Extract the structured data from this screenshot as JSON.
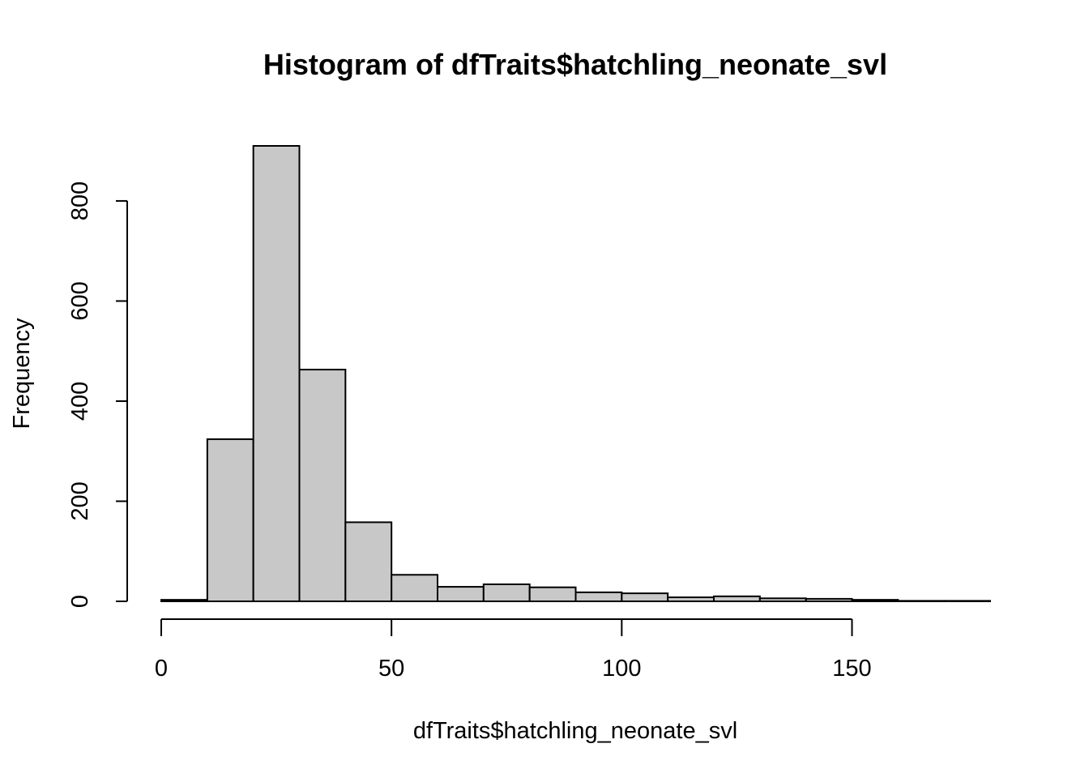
{
  "chart_data": {
    "type": "bar",
    "title": "Histogram of dfTraits$hatchling_neonate_svl",
    "xlabel": "dfTraits$hatchling_neonate_svl",
    "ylabel": "Frequency",
    "bin_edges": [
      0,
      10,
      20,
      30,
      40,
      50,
      60,
      70,
      80,
      90,
      100,
      110,
      120,
      130,
      140,
      150,
      160,
      170,
      180
    ],
    "values": [
      3,
      324,
      910,
      463,
      158,
      53,
      29,
      34,
      28,
      18,
      16,
      8,
      10,
      6,
      5,
      3,
      1,
      1
    ],
    "xlim": [
      0,
      180
    ],
    "ylim": [
      0,
      910
    ],
    "x_ticks": [
      0,
      50,
      100,
      150
    ],
    "x_tick_labels": [
      "0",
      "50",
      "100",
      "150"
    ],
    "y_ticks": [
      0,
      200,
      400,
      600,
      800
    ],
    "y_tick_labels": [
      "0",
      "200",
      "400",
      "600",
      "800"
    ],
    "bar_color": "#c8c8c8",
    "edge_color": "#000000",
    "grid": false,
    "legend": "none"
  }
}
